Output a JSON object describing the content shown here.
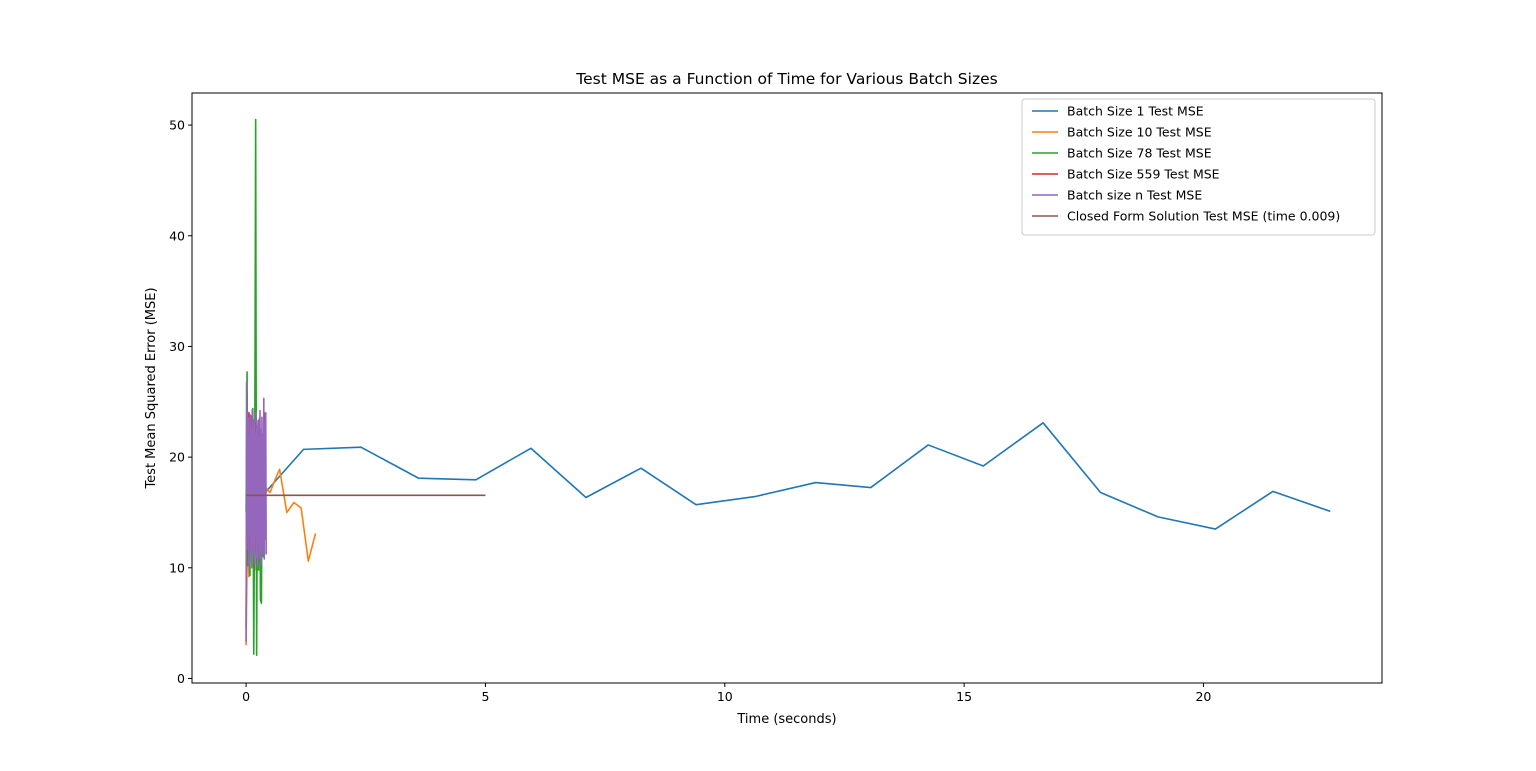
{
  "chart_data": {
    "type": "line",
    "title": "Test MSE as a Function of Time for Various Batch Sizes",
    "xlabel": "Time (seconds)",
    "ylabel": "Test Mean Squared Error (MSE)",
    "xlim": [
      -1.13,
      23.73
    ],
    "ylim": [
      -0.41,
      52.9
    ],
    "xticks": [
      0,
      5,
      10,
      15,
      20
    ],
    "yticks": [
      0,
      10,
      20,
      30,
      40,
      50
    ],
    "grid": false,
    "legend_position": "upper right",
    "series": [
      {
        "name": "Batch Size 1 Test MSE",
        "color": "#1f77b4",
        "x": [
          0.0,
          0.4,
          1.2,
          2.4,
          3.6,
          4.8,
          5.95,
          7.1,
          8.25,
          9.4,
          10.65,
          11.9,
          13.05,
          14.25,
          15.4,
          16.65,
          17.85,
          19.05,
          20.25,
          21.45,
          22.65
        ],
        "y": [
          16.3,
          16.8,
          20.7,
          20.9,
          18.1,
          17.95,
          20.8,
          16.35,
          19.0,
          15.7,
          16.45,
          17.7,
          17.25,
          21.1,
          19.2,
          23.1,
          16.8,
          14.6,
          13.5,
          16.9,
          15.1
        ]
      },
      {
        "name": "Batch Size 10 Test MSE",
        "color": "#ff7f0e",
        "x": [
          0.0,
          0.03,
          0.06,
          0.1,
          0.14,
          0.18,
          0.22,
          0.26,
          0.3,
          0.35,
          0.4,
          0.5,
          0.6,
          0.7,
          0.85,
          1.0,
          1.15,
          1.3,
          1.45
        ],
        "y": [
          3.0,
          14.8,
          9.2,
          22.0,
          15.6,
          9.8,
          21.4,
          16.2,
          10.2,
          15.0,
          17.3,
          16.8,
          17.9,
          18.9,
          15.0,
          15.9,
          15.4,
          10.6,
          13.1
        ]
      },
      {
        "name": "Batch Size 78 Test MSE",
        "color": "#2ca02c",
        "x": [
          0.0,
          0.02,
          0.04,
          0.06,
          0.08,
          0.1,
          0.12,
          0.14,
          0.16,
          0.18,
          0.2,
          0.22,
          0.24,
          0.26,
          0.28,
          0.3,
          0.32,
          0.34,
          0.36,
          0.38,
          0.4
        ],
        "y": [
          15.0,
          27.7,
          10.2,
          21.5,
          9.3,
          20.2,
          12.6,
          24.4,
          2.2,
          18.0,
          50.5,
          2.1,
          22.4,
          9.8,
          23.5,
          7.1,
          6.8,
          21.7,
          11.0,
          22.5,
          16.0
        ]
      },
      {
        "name": "Batch Size 559 Test MSE",
        "color": "#d62728",
        "x": [
          0.0,
          0.02,
          0.04,
          0.06,
          0.08,
          0.1,
          0.12,
          0.14,
          0.16,
          0.18,
          0.2,
          0.22,
          0.24,
          0.26,
          0.28,
          0.3,
          0.32,
          0.34,
          0.36,
          0.38,
          0.4
        ],
        "y": [
          4.5,
          20.6,
          12.5,
          24.0,
          11.8,
          23.7,
          13.2,
          22.8,
          12.0,
          23.1,
          21.5,
          11.2,
          22.5,
          23.3,
          12.5,
          21.8,
          11.9,
          22.1,
          12.8,
          24.0,
          13.0
        ]
      },
      {
        "name": "Batch size n Test MSE",
        "color": "#9467bd",
        "x": [
          0.0,
          0.01,
          0.02,
          0.03,
          0.04,
          0.05,
          0.06,
          0.07,
          0.08,
          0.09,
          0.1,
          0.11,
          0.12,
          0.13,
          0.14,
          0.15,
          0.16,
          0.17,
          0.18,
          0.19,
          0.2,
          0.21,
          0.22,
          0.23,
          0.24,
          0.25,
          0.26,
          0.27,
          0.28,
          0.29,
          0.3,
          0.31,
          0.32,
          0.33,
          0.34,
          0.35,
          0.36,
          0.37,
          0.38,
          0.39,
          0.4,
          0.41,
          0.42
        ],
        "y": [
          3.3,
          26.8,
          14.2,
          24.1,
          11.7,
          23.5,
          10.2,
          21.9,
          12.9,
          23.8,
          11.5,
          22.6,
          10.0,
          24.3,
          12.2,
          22.8,
          11.1,
          23.4,
          10.4,
          22.1,
          12.8,
          24.0,
          11.0,
          22.7,
          10.1,
          23.3,
          12.4,
          21.8,
          10.9,
          24.2,
          11.6,
          22.5,
          10.3,
          23.6,
          12.0,
          22.0,
          11.3,
          25.3,
          10.8,
          23.1,
          12.6,
          24.0,
          11.2
        ]
      },
      {
        "name": "Closed Form Solution Test MSE (time 0.009)",
        "color": "#8c564b",
        "x": [
          0.0,
          5.0
        ],
        "y": [
          16.55,
          16.55
        ]
      }
    ]
  }
}
